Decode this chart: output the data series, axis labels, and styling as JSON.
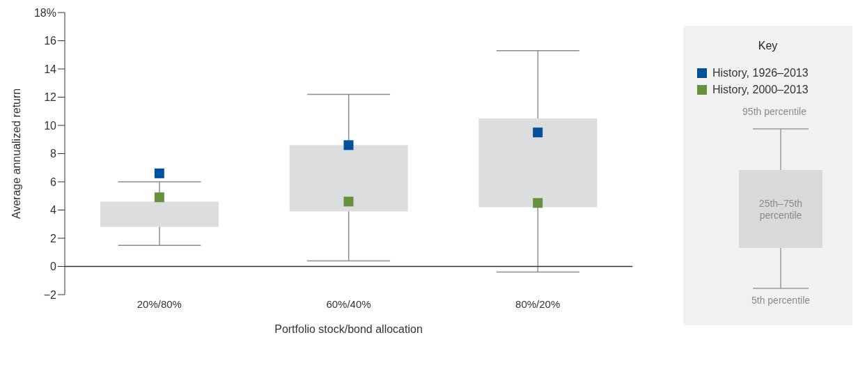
{
  "chart_data": {
    "type": "box",
    "xlabel": "Portfolio stock/bond allocation",
    "ylabel": "Average annualized return",
    "categories": [
      "20%/80%",
      "60%/40%",
      "80%/20%"
    ],
    "boxes": [
      {
        "low": 1.5,
        "q1": 2.8,
        "median": null,
        "q3": 4.6,
        "high": 6.0
      },
      {
        "low": 0.4,
        "q1": 3.9,
        "median": null,
        "q3": 8.6,
        "high": 12.2
      },
      {
        "low": -0.4,
        "q1": 4.2,
        "median": null,
        "q3": 10.5,
        "high": 15.3
      }
    ],
    "color": "#dcdddf",
    "series": [
      {
        "type": "scatter",
        "name": "History, 1926–2013",
        "color": "#00529b",
        "x": [
          "20%/80%",
          "60%/40%",
          "80%/20%"
        ],
        "values": [
          6.6,
          8.6,
          9.5
        ]
      },
      {
        "type": "scatter",
        "name": "History, 2000–2013",
        "color": "#67923d",
        "x": [
          "20%/80%",
          "60%/40%",
          "80%/20%"
        ],
        "values": [
          4.9,
          4.6,
          4.5
        ]
      }
    ],
    "marker": "square",
    "ylim": [
      -2,
      18
    ],
    "yticks": [
      {
        "value": -2,
        "label": "−2"
      },
      0,
      2,
      4,
      6,
      8,
      10,
      12,
      14,
      16,
      {
        "value": 18,
        "label": "18%"
      }
    ],
    "ref_lines": [
      {
        "axis": "y",
        "value": 0,
        "color": "#333333"
      }
    ],
    "grid": false,
    "legend": "top right",
    "legend_title": "Key",
    "annotations": [
      "95th percentile",
      "25th–75th percentile",
      "5th percentile"
    ]
  }
}
